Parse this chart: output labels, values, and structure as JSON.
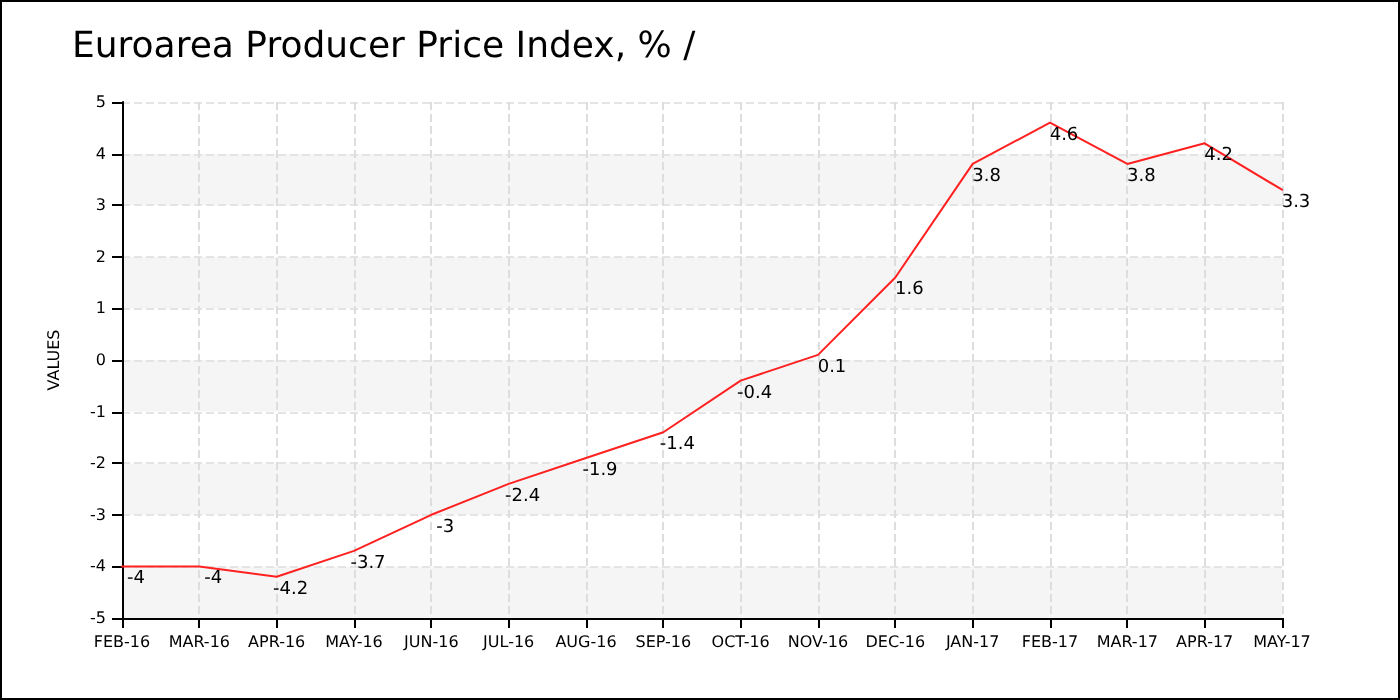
{
  "chart_data": {
    "type": "line",
    "title": "Euroarea Producer Price Index, % /",
    "ylabel": "VALUES",
    "categories": [
      "FEB-16",
      "MAR-16",
      "APR-16",
      "MAY-16",
      "JUN-16",
      "JUL-16",
      "AUG-16",
      "SEP-16",
      "OCT-16",
      "NOV-16",
      "DEC-16",
      "JAN-17",
      "FEB-17",
      "MAR-17",
      "APR-17",
      "MAY-17"
    ],
    "series": [
      {
        "color": "#ff2020",
        "values": [
          -4,
          -4,
          -4.2,
          -3.7,
          -3,
          -2.4,
          -1.9,
          -1.4,
          -0.4,
          0.1,
          1.6,
          3.8,
          4.6,
          3.8,
          4.2,
          3.3
        ]
      }
    ],
    "ylim": [
      -5,
      5
    ],
    "yticks": [
      -5,
      -4,
      -3,
      -2,
      -1,
      0,
      1,
      2,
      3,
      4,
      5
    ],
    "grid": true,
    "data_labels": true,
    "marker": "none",
    "line_style": "solid"
  }
}
